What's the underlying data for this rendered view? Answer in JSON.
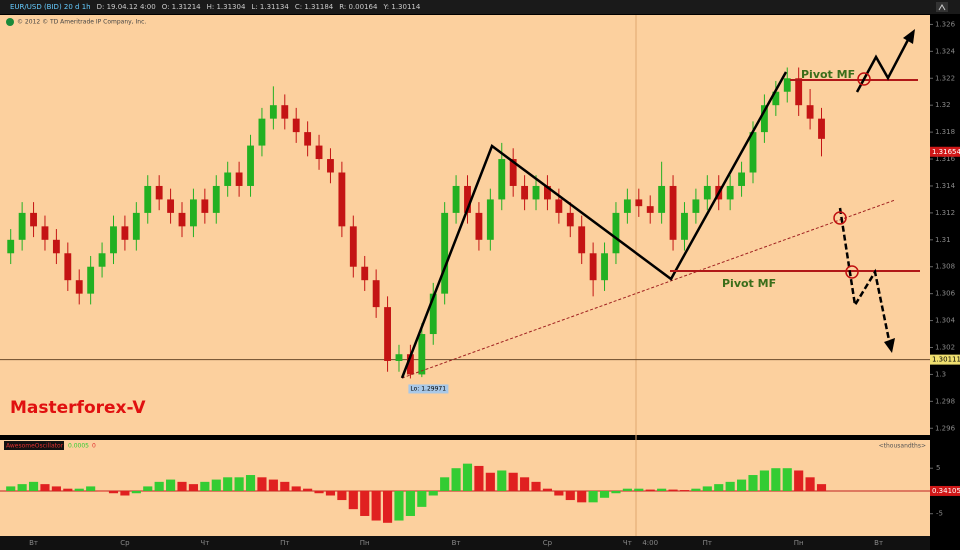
{
  "toolbar": {
    "symbol": "EUR/USD (BID) 20 d 1h",
    "fields": [
      "D: 19.04.12 4:00",
      "O: 1.31214",
      "H: 1.31304",
      "L: 1.31134",
      "C: 1.31184",
      "R: 0.00164",
      "Y: 1.30114"
    ]
  },
  "copyright": "© 2012 © TD Ameritrade IP Company, Inc.",
  "watermark": "Masterforex-V",
  "drawings": {
    "pivot_upper": "Pivot MF",
    "pivot_lower": "Pivot MF"
  },
  "chart_data": [
    {
      "type": "candlestick",
      "up_color": "#22b022",
      "down_color": "#c41414",
      "categories": [
        null,
        null,
        "Вт",
        null,
        null,
        null,
        null,
        null,
        null,
        null,
        "Ср",
        null,
        null,
        null,
        null,
        null,
        null,
        "Чт",
        null,
        null,
        null,
        null,
        null,
        null,
        "Пт",
        null,
        null,
        null,
        null,
        null,
        null,
        "Пн",
        null,
        null,
        null,
        null,
        null,
        null,
        null,
        "Вт",
        null,
        null,
        null,
        null,
        null,
        null,
        null,
        "Ср",
        null,
        null,
        null,
        null,
        null,
        null,
        "Чт",
        null,
        "4:00",
        null,
        null,
        null,
        null,
        "Пт",
        null,
        null,
        null,
        null,
        null,
        null,
        null,
        "Пн",
        null,
        null,
        null,
        null,
        null,
        null,
        "Вт",
        null,
        null,
        null,
        null
      ],
      "ohlc": [
        [
          1.309,
          1.3108,
          1.3082,
          1.31
        ],
        [
          1.31,
          1.3128,
          1.3092,
          1.312
        ],
        [
          1.312,
          1.3128,
          1.3102,
          1.311
        ],
        [
          1.311,
          1.3118,
          1.3092,
          1.31
        ],
        [
          1.31,
          1.3108,
          1.3082,
          1.309
        ],
        [
          1.309,
          1.3098,
          1.3062,
          1.307
        ],
        [
          1.307,
          1.3078,
          1.3052,
          1.306
        ],
        [
          1.306,
          1.3088,
          1.3052,
          1.308
        ],
        [
          1.308,
          1.3098,
          1.3072,
          1.309
        ],
        [
          1.309,
          1.3118,
          1.3082,
          1.311
        ],
        [
          1.311,
          1.3118,
          1.3092,
          1.31
        ],
        [
          1.31,
          1.3128,
          1.3092,
          1.312
        ],
        [
          1.312,
          1.3148,
          1.3112,
          1.314
        ],
        [
          1.314,
          1.3148,
          1.3122,
          1.313
        ],
        [
          1.313,
          1.3138,
          1.3112,
          1.312
        ],
        [
          1.312,
          1.3128,
          1.3102,
          1.311
        ],
        [
          1.311,
          1.3138,
          1.3102,
          1.313
        ],
        [
          1.313,
          1.3138,
          1.3112,
          1.312
        ],
        [
          1.312,
          1.3148,
          1.3112,
          1.314
        ],
        [
          1.314,
          1.3158,
          1.3132,
          1.315
        ],
        [
          1.315,
          1.3158,
          1.3132,
          1.314
        ],
        [
          1.314,
          1.3178,
          1.3132,
          1.317
        ],
        [
          1.317,
          1.3198,
          1.3162,
          1.319
        ],
        [
          1.319,
          1.3214,
          1.3182,
          1.32
        ],
        [
          1.32,
          1.3208,
          1.3182,
          1.319
        ],
        [
          1.319,
          1.3198,
          1.3172,
          1.318
        ],
        [
          1.318,
          1.3188,
          1.3162,
          1.317
        ],
        [
          1.317,
          1.3178,
          1.3152,
          1.316
        ],
        [
          1.316,
          1.3168,
          1.3142,
          1.315
        ],
        [
          1.315,
          1.3158,
          1.3102,
          1.311
        ],
        [
          1.311,
          1.3118,
          1.3072,
          1.308
        ],
        [
          1.308,
          1.3088,
          1.3062,
          1.307
        ],
        [
          1.307,
          1.3078,
          1.3042,
          1.305
        ],
        [
          1.305,
          1.3058,
          1.3002,
          1.301
        ],
        [
          1.301,
          1.3022,
          1.3002,
          1.3015
        ],
        [
          1.3015,
          1.3022,
          1.2997,
          1.3
        ],
        [
          1.3,
          1.3038,
          1.2998,
          1.303
        ],
        [
          1.303,
          1.3068,
          1.3022,
          1.306
        ],
        [
          1.306,
          1.3128,
          1.3052,
          1.312
        ],
        [
          1.312,
          1.3148,
          1.3112,
          1.314
        ],
        [
          1.314,
          1.3148,
          1.3112,
          1.312
        ],
        [
          1.312,
          1.3128,
          1.3092,
          1.31
        ],
        [
          1.31,
          1.3138,
          1.3092,
          1.313
        ],
        [
          1.313,
          1.3172,
          1.3122,
          1.316
        ],
        [
          1.316,
          1.3168,
          1.3132,
          1.314
        ],
        [
          1.314,
          1.3148,
          1.3122,
          1.313
        ],
        [
          1.313,
          1.3148,
          1.3122,
          1.314
        ],
        [
          1.314,
          1.3148,
          1.3122,
          1.313
        ],
        [
          1.313,
          1.3138,
          1.3112,
          1.312
        ],
        [
          1.312,
          1.3128,
          1.3102,
          1.311
        ],
        [
          1.311,
          1.3118,
          1.3082,
          1.309
        ],
        [
          1.309,
          1.3098,
          1.3058,
          1.307
        ],
        [
          1.307,
          1.3098,
          1.3062,
          1.309
        ],
        [
          1.309,
          1.3128,
          1.3082,
          1.312
        ],
        [
          1.312,
          1.3138,
          1.3112,
          1.313
        ],
        [
          1.313,
          1.3138,
          1.3117,
          1.3125
        ],
        [
          1.3125,
          1.3133,
          1.3112,
          1.312
        ],
        [
          1.312,
          1.3158,
          1.3112,
          1.314
        ],
        [
          1.314,
          1.3148,
          1.3092,
          1.31
        ],
        [
          1.31,
          1.3128,
          1.3092,
          1.312
        ],
        [
          1.312,
          1.3138,
          1.3112,
          1.313
        ],
        [
          1.313,
          1.3148,
          1.3122,
          1.314
        ],
        [
          1.314,
          1.3148,
          1.3122,
          1.313
        ],
        [
          1.313,
          1.3148,
          1.3122,
          1.314
        ],
        [
          1.314,
          1.3158,
          1.3132,
          1.315
        ],
        [
          1.315,
          1.3188,
          1.3142,
          1.318
        ],
        [
          1.318,
          1.3208,
          1.3172,
          1.32
        ],
        [
          1.32,
          1.3218,
          1.3192,
          1.321
        ],
        [
          1.321,
          1.3228,
          1.3202,
          1.322
        ],
        [
          1.322,
          1.3228,
          1.3192,
          1.32
        ],
        [
          1.32,
          1.3212,
          1.3182,
          1.319
        ],
        [
          1.319,
          1.3198,
          1.3162,
          1.3175
        ],
        null,
        null,
        null,
        null,
        null,
        null,
        null,
        null,
        null
      ],
      "ylim": [
        1.2955,
        1.3267
      ],
      "yticks": [
        1.296,
        1.298,
        1.3,
        1.302,
        1.304,
        1.306,
        1.308,
        1.31,
        1.312,
        1.314,
        1.316,
        1.318,
        1.32,
        1.322,
        1.324,
        1.326
      ],
      "hline": {
        "value": 1.3011,
        "label": "1.30111"
      },
      "last_price": {
        "value": 1.31654,
        "label": "1.31654"
      },
      "low_annotation": {
        "value": 1.2997,
        "label": "Lo: 1.29971"
      }
    },
    {
      "type": "histogram",
      "title": "AwesomeOscillator",
      "params": [
        "0.0005",
        "0"
      ],
      "units": "<thousandths>",
      "rise_color": "#33cc33",
      "fall_color": "#e02020",
      "values": [
        1,
        1.5,
        2,
        1.5,
        1,
        0.5,
        0.5,
        1,
        0,
        -0.5,
        -1,
        -0.5,
        1,
        2,
        2.5,
        2,
        1.5,
        2,
        2.5,
        3,
        3,
        3.5,
        3,
        2.5,
        2,
        1,
        0.5,
        -0.5,
        -1,
        -2,
        -4,
        -5.5,
        -6.5,
        -7,
        -6.5,
        -5.5,
        -3.5,
        -1,
        3,
        5,
        6,
        5.5,
        4,
        4.5,
        4,
        3,
        2,
        0.5,
        -1,
        -2,
        -2.5,
        -2.5,
        -1.5,
        -0.5,
        0.5,
        0.5,
        0.3,
        0.5,
        0.3,
        0.2,
        0.5,
        1,
        1.5,
        2,
        2.5,
        3.5,
        4.5,
        5,
        5,
        4.5,
        3,
        1.5,
        null,
        null,
        null,
        null,
        null,
        null,
        null,
        null,
        null
      ],
      "ylim": [
        -9.9,
        11.2
      ],
      "yticks": [
        -5,
        5
      ],
      "zero_label": {
        "value": 0,
        "label": "0.34105"
      }
    }
  ]
}
